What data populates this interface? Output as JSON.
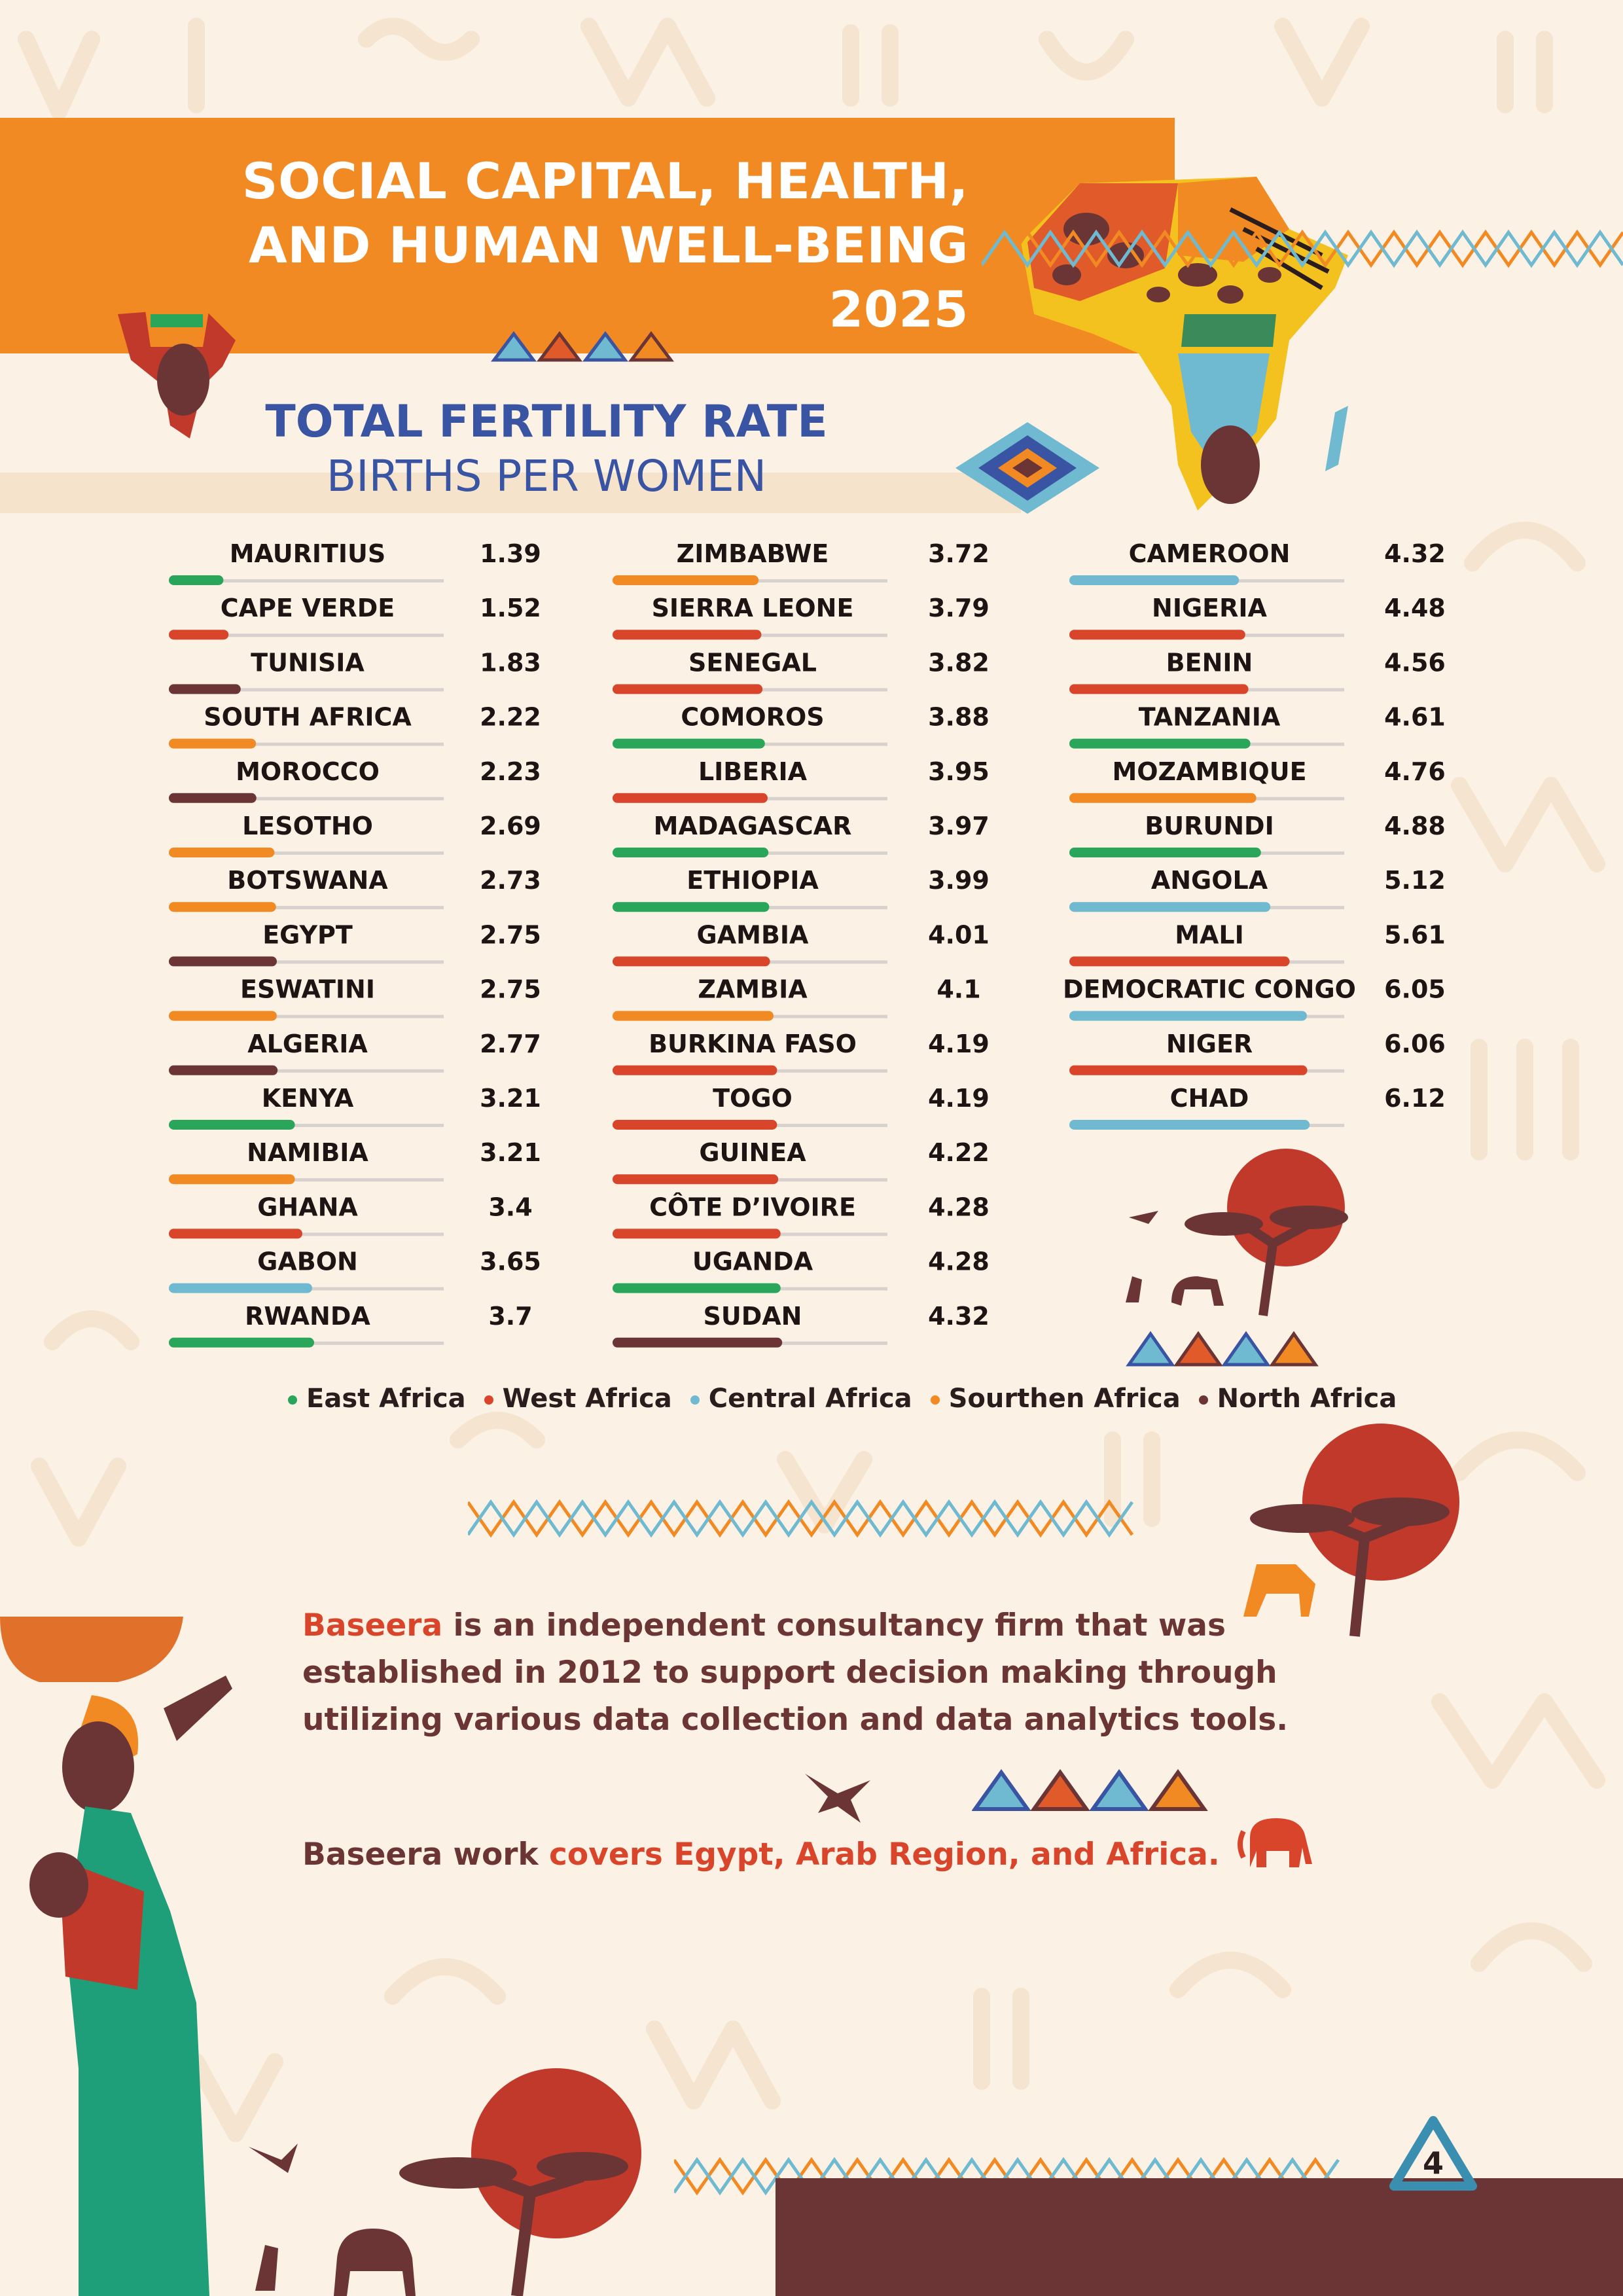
{
  "header": {
    "title_line1": "SOCIAL CAPITAL, HEALTH,",
    "title_line2": "AND HUMAN WELL-BEING",
    "title_line3": "2025"
  },
  "chart_data": {
    "type": "bar",
    "title": "TOTAL FERTILITY RATE",
    "subtitle": "BIRTHS PER WOMEN",
    "xlim": [
      0,
      7
    ],
    "categories": [
      "MAURITIUS",
      "CAPE VERDE",
      "TUNISIA",
      "SOUTH AFRICA",
      "MOROCCO",
      "LESOTHO",
      "BOTSWANA",
      "EGYPT",
      "ESWATINI",
      "ALGERIA",
      "KENYA",
      "NAMIBIA",
      "GHANA",
      "GABON",
      "RWANDA",
      "ZIMBABWE",
      "SIERRA LEONE",
      "SENEGAL",
      "COMOROS",
      "LIBERIA",
      "MADAGASCAR",
      "ETHIOPIA",
      "GAMBIA",
      "ZAMBIA",
      "BURKINA FASO",
      "TOGO",
      "GUINEA",
      "CÔTE D’IVOIRE",
      "UGANDA",
      "SUDAN",
      "CAMEROON",
      "NIGERIA",
      "BENIN",
      "TANZANIA",
      "MOZAMBIQUE",
      "BURUNDI",
      "ANGOLA",
      "MALI",
      "DEMOCRATIC CONGO",
      "NIGER",
      "CHAD"
    ],
    "values": [
      1.39,
      1.52,
      1.83,
      2.22,
      2.23,
      2.69,
      2.73,
      2.75,
      2.75,
      2.77,
      3.21,
      3.21,
      3.4,
      3.65,
      3.7,
      3.72,
      3.79,
      3.82,
      3.88,
      3.95,
      3.97,
      3.99,
      4.01,
      4.1,
      4.19,
      4.19,
      4.22,
      4.28,
      4.28,
      4.32,
      4.32,
      4.48,
      4.56,
      4.61,
      4.76,
      4.88,
      5.12,
      5.61,
      6.05,
      6.06,
      6.12
    ],
    "value_labels": [
      "1.39",
      "1.52",
      "1.83",
      "2.22",
      "2.23",
      "2.69",
      "2.73",
      "2.75",
      "2.75",
      "2.77",
      "3.21",
      "3.21",
      "3.4",
      "3.65",
      "3.7",
      "3.72",
      "3.79",
      "3.82",
      "3.88",
      "3.95",
      "3.97",
      "3.99",
      "4.01",
      "4.1",
      "4.19",
      "4.19",
      "4.22",
      "4.28",
      "4.28",
      "4.32",
      "4.32",
      "4.48",
      "4.56",
      "4.61",
      "4.76",
      "4.88",
      "5.12",
      "5.61",
      "6.05",
      "6.06",
      "6.12"
    ],
    "regions": [
      "East Africa",
      "West Africa",
      "North Africa",
      "Sourthen Africa",
      "North Africa",
      "Sourthen Africa",
      "Sourthen Africa",
      "North Africa",
      "Sourthen Africa",
      "North Africa",
      "East Africa",
      "Sourthen Africa",
      "West Africa",
      "Central Africa",
      "East Africa",
      "Sourthen Africa",
      "West Africa",
      "West Africa",
      "East Africa",
      "West Africa",
      "East Africa",
      "East Africa",
      "West Africa",
      "Sourthen Africa",
      "West Africa",
      "West Africa",
      "West Africa",
      "West Africa",
      "East Africa",
      "North Africa",
      "Central Africa",
      "West Africa",
      "West Africa",
      "East Africa",
      "Sourthen Africa",
      "East Africa",
      "Central Africa",
      "West Africa",
      "Central Africa",
      "West Africa",
      "Central Africa"
    ],
    "legend": [
      {
        "name": "East Africa",
        "color": "#2aa65a"
      },
      {
        "name": "West Africa",
        "color": "#d9452a"
      },
      {
        "name": "Central Africa",
        "color": "#6fbad0"
      },
      {
        "name": "Sourthen Africa",
        "color": "#f18a23"
      },
      {
        "name": "North Africa",
        "color": "#6b3535"
      }
    ],
    "layout": "three columns of 15, 15 and 11 rows",
    "legend_position": "bottom"
  },
  "about": {
    "brand": "Baseera",
    "text": " is an independent consultancy firm that was established in 2012 to support decision making through utilizing various data collection and data analytics tools.",
    "coverage_prefix": "Baseera work ",
    "coverage_highlight": "covers Egypt, Arab Region, and Africa."
  },
  "page_number": "4",
  "colors": {
    "orange": "#f18a23",
    "red": "#d9452a",
    "brown": "#6b3535",
    "blue_title": "#3a54a4",
    "green": "#2aa65a",
    "light_blue": "#6fbad0",
    "cream": "#fbf1e4"
  }
}
